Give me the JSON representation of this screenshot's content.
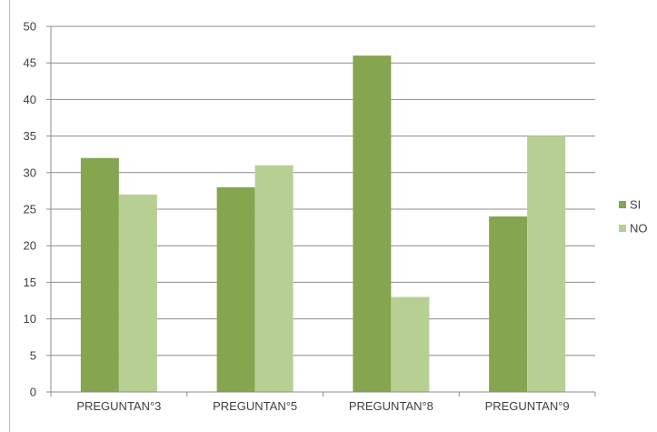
{
  "chart_data": {
    "type": "bar",
    "categories": [
      "PREGUNTAN°3",
      "PREGUNTAN°5",
      "PREGUNTAN°8",
      "PREGUNTAN°9"
    ],
    "series": [
      {
        "name": "SI",
        "values": [
          32,
          28,
          46,
          24
        ],
        "color": "#86a54f"
      },
      {
        "name": "NO",
        "values": [
          27,
          31,
          13,
          35
        ],
        "color": "#b8cf94"
      }
    ],
    "ylim": [
      0,
      50
    ],
    "yticks": [
      0,
      5,
      10,
      15,
      20,
      25,
      30,
      35,
      40,
      45,
      50
    ],
    "grid": true,
    "legend_position": "right",
    "title": "",
    "xlabel": "",
    "ylabel": ""
  },
  "colors": {
    "grid": "#8c8c8c",
    "axis": "#8c8c8c",
    "text": "#404040"
  }
}
